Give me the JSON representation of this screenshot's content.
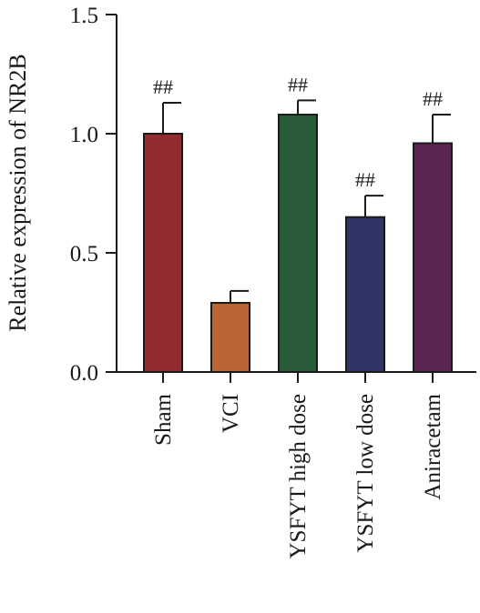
{
  "chart_data": {
    "type": "bar",
    "ylabel": "Relative expression of NR2B",
    "xlabel": "",
    "ylim": [
      0,
      1.5
    ],
    "yticks": [
      "0.0",
      "0.5",
      "1.0",
      "1.5"
    ],
    "categories": [
      "Sham",
      "VCI",
      "YSFYT high dose",
      "YSFYT low dose",
      "Aniracetam"
    ],
    "values": [
      1.0,
      0.29,
      1.08,
      0.65,
      0.96
    ],
    "errors": [
      0.13,
      0.05,
      0.06,
      0.09,
      0.12
    ],
    "significance": [
      "##",
      "",
      "##",
      "##",
      "##"
    ],
    "colors": [
      "#922a30",
      "#b96534",
      "#2a5b38",
      "#2f3564",
      "#5c2653"
    ],
    "grid": false
  }
}
